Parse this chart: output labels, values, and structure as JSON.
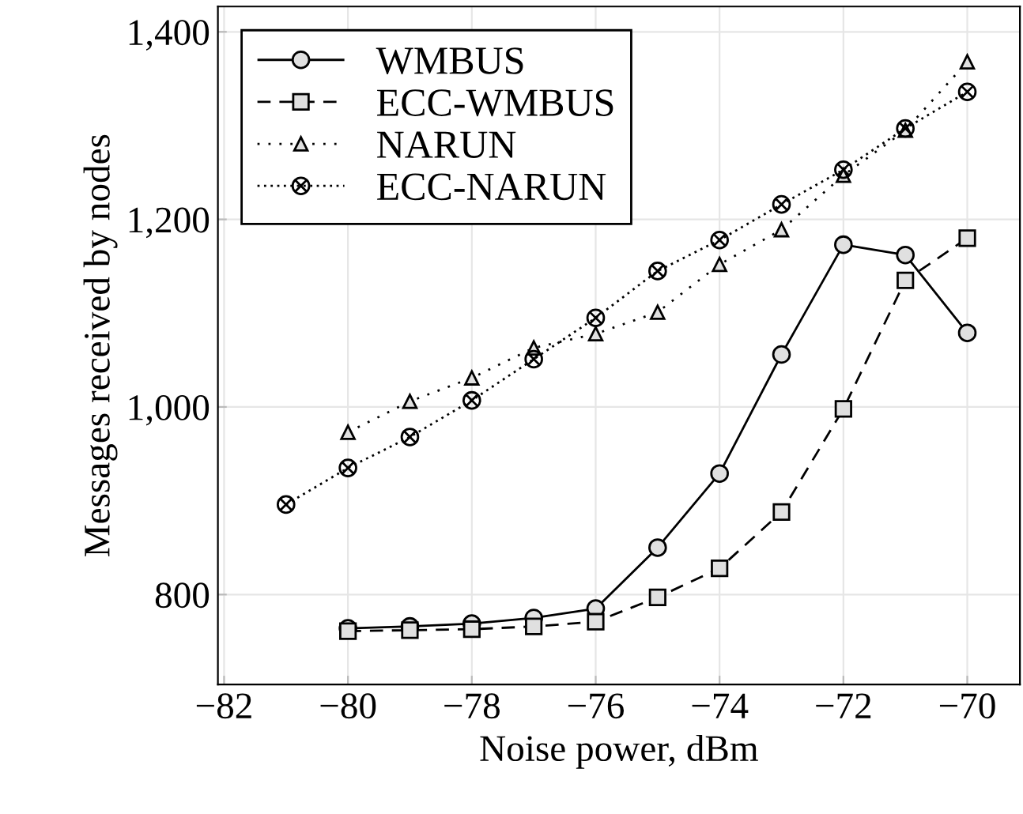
{
  "chart_data": {
    "type": "line",
    "xlabel": "Noise power, dBm",
    "ylabel": "Messages received by nodes",
    "xlim": [
      -82.1,
      -69.15
    ],
    "ylim": [
      704,
      1427
    ],
    "xticks": [
      {
        "value": -82,
        "label": "−82"
      },
      {
        "value": -80,
        "label": "−80"
      },
      {
        "value": -78,
        "label": "−78"
      },
      {
        "value": -76,
        "label": "−76"
      },
      {
        "value": -74,
        "label": "−74"
      },
      {
        "value": -72,
        "label": "−72"
      },
      {
        "value": -70,
        "label": "−70"
      }
    ],
    "yticks": [
      800,
      {
        "value": 1000,
        "label": "1,000"
      },
      {
        "value": 1200,
        "label": "1,200"
      },
      {
        "value": 1400,
        "label": "1,400"
      }
    ],
    "grid": true,
    "legend": "top left",
    "series": [
      {
        "name": "WMBUS",
        "color": "#000000",
        "marker": "circle",
        "line_style": "solid",
        "x": [
          -80,
          -79,
          -78,
          -77,
          -76,
          -75,
          -74,
          -73,
          -72,
          -71,
          -70
        ],
        "values": [
          764,
          766,
          769,
          775,
          785,
          850,
          929,
          1056,
          1173,
          1162,
          1079
        ]
      },
      {
        "name": "ECC-WMBUS",
        "color": "#000000",
        "marker": "square",
        "line_style": "dashed",
        "x": [
          -80,
          -79,
          -78,
          -77,
          -76,
          -75,
          -74,
          -73,
          -72,
          -71,
          -70
        ],
        "values": [
          761,
          762,
          763,
          766,
          771,
          797,
          828,
          888,
          998,
          1135,
          1180
        ]
      },
      {
        "name": "NARUN",
        "color": "#000000",
        "marker": "triangle",
        "line_style": "dashdot",
        "x": [
          -80,
          -79,
          -78,
          -77,
          -76,
          -75,
          -74,
          -73,
          -72,
          -71,
          -70
        ],
        "values": [
          973,
          1006,
          1031,
          1063,
          1078,
          1101,
          1152,
          1189,
          1247,
          1295,
          1368
        ]
      },
      {
        "name": "ECC-NARUN",
        "color": "#000000",
        "marker": "cross",
        "line_style": "dotted",
        "x": [
          -81,
          -80,
          -79,
          -78,
          -77,
          -76,
          -75,
          -74,
          -73,
          -72,
          -71,
          -70
        ],
        "values": [
          896,
          935,
          968,
          1007,
          1051,
          1095,
          1145,
          1178,
          1216,
          1253,
          1297,
          1336
        ]
      }
    ]
  }
}
